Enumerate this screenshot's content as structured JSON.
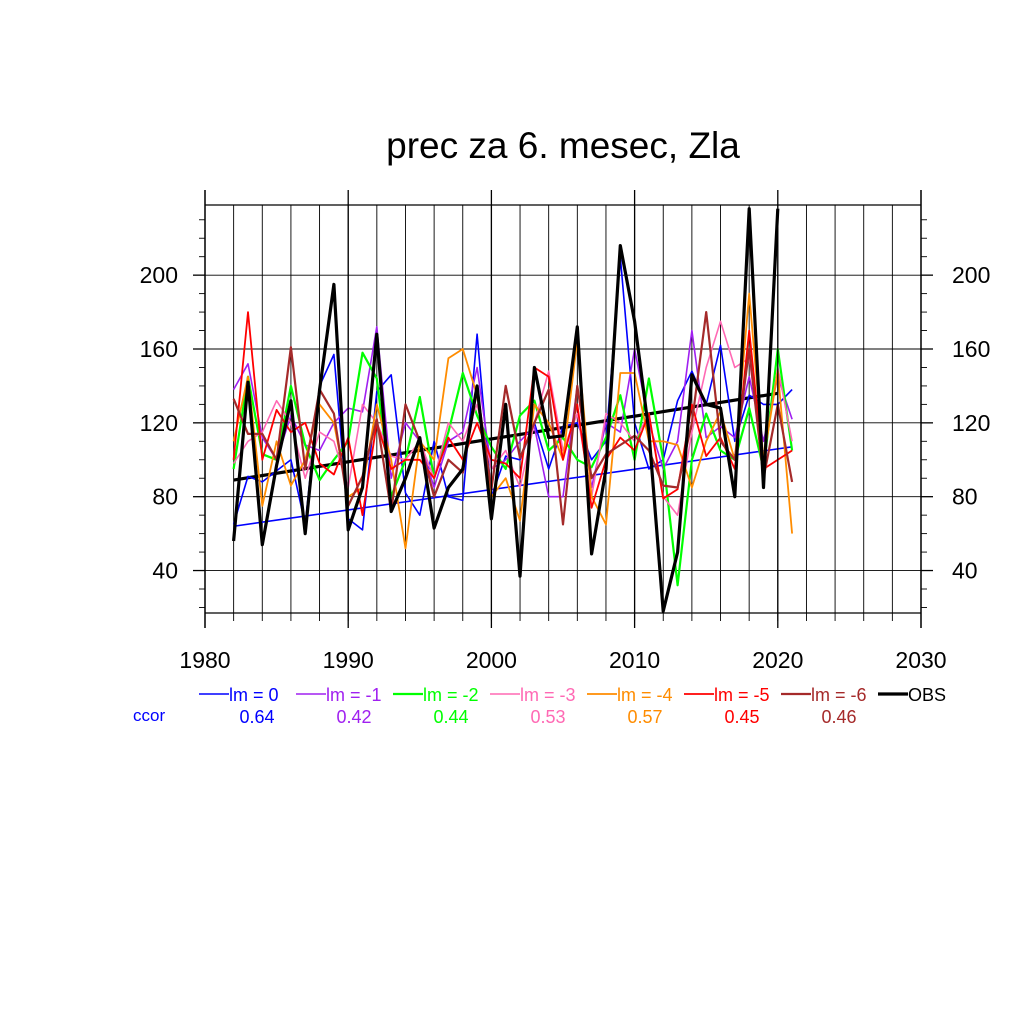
{
  "chart_data": {
    "type": "line",
    "title": "prec za 6. mesec, Zla",
    "xlim": [
      1980,
      2030
    ],
    "ylim": [
      17,
      238
    ],
    "x_ticks": [
      1980,
      1990,
      2000,
      2010,
      2020,
      2030
    ],
    "y_ticks": [
      40,
      80,
      120,
      160,
      200
    ],
    "x_tick_labels": [
      "1980",
      "1990",
      "2000",
      "2010",
      "2020",
      "2030"
    ],
    "y_tick_labels": [
      "40",
      "80",
      "120",
      "160",
      "200"
    ],
    "grid": true,
    "legend_position": "bottom",
    "ccor_label": "ccor",
    "x": [
      1982,
      1983,
      1984,
      1985,
      1986,
      1987,
      1988,
      1989,
      1990,
      1991,
      1992,
      1993,
      1994,
      1995,
      1996,
      1997,
      1998,
      1999,
      2000,
      2001,
      2002,
      2003,
      2004,
      2005,
      2006,
      2007,
      2008,
      2009,
      2010,
      2011,
      2012,
      2013,
      2014,
      2015,
      2016,
      2017,
      2018,
      2019,
      2020,
      2021
    ],
    "series": [
      {
        "name": "lm = 0",
        "color": "#0000ff",
        "width": 1.6,
        "ccor": "0.64",
        "values": [
          65,
          91,
          88,
          94,
          100,
          65,
          140,
          157,
          68,
          62,
          137,
          146,
          82,
          70,
          110,
          80,
          78,
          168,
          80,
          102,
          100,
          120,
          95,
          118,
          120,
          100,
          110,
          210,
          120,
          95,
          100,
          132,
          148,
          130,
          162,
          110,
          135,
          130,
          130,
          138
        ]
      },
      {
        "name": "lm = -1",
        "color": "#a020f0",
        "width": 1.6,
        "ccor": "0.42",
        "values": [
          138,
          152,
          112,
          100,
          124,
          108,
          105,
          120,
          128,
          126,
          172,
          90,
          120,
          110,
          85,
          110,
          115,
          150,
          95,
          100,
          110,
          118,
          80,
          80,
          140,
          85,
          120,
          115,
          160,
          120,
          95,
          110,
          170,
          112,
          118,
          112,
          145,
          110,
          145,
          122
        ]
      },
      {
        "name": "lm = -2",
        "color": "#00ff00",
        "width": 2.2,
        "ccor": "0.44",
        "values": [
          95,
          145,
          103,
          100,
          140,
          108,
          89,
          100,
          110,
          158,
          144,
          80,
          100,
          134,
          90,
          115,
          147,
          124,
          107,
          95,
          124,
          132,
          105,
          112,
          100,
          96,
          112,
          135,
          100,
          144,
          100,
          32,
          100,
          125,
          105,
          100,
          128,
          95,
          160,
          105
        ]
      },
      {
        "name": "lm = -3",
        "color": "#ff69b4",
        "width": 1.6,
        "ccor": "0.53",
        "values": [
          98,
          110,
          115,
          132,
          120,
          90,
          115,
          110,
          85,
          130,
          120,
          102,
          100,
          110,
          90,
          120,
          110,
          130,
          95,
          105,
          85,
          120,
          148,
          105,
          125,
          80,
          125,
          120,
          110,
          125,
          80,
          70,
          115,
          150,
          175,
          150,
          155,
          100,
          150,
          110
        ]
      },
      {
        "name": "lm = -4",
        "color": "#ff8c00",
        "width": 1.8,
        "ccor": "0.57",
        "values": [
          110,
          145,
          75,
          110,
          86,
          100,
          130,
          120,
          80,
          85,
          130,
          100,
          52,
          110,
          100,
          155,
          160,
          135,
          80,
          90,
          67,
          130,
          120,
          100,
          165,
          80,
          65,
          147,
          147,
          110,
          110,
          108,
          85,
          110,
          126,
          100,
          190,
          100,
          148,
          60
        ]
      },
      {
        "name": "lm = -5",
        "color": "#ff0000",
        "width": 1.8,
        "ccor": "0.45",
        "values": [
          100,
          180,
          100,
          127,
          115,
          120,
          98,
          92,
          112,
          70,
          120,
          95,
          100,
          100,
          90,
          112,
          100,
          120,
          100,
          98,
          90,
          150,
          145,
          100,
          130,
          74,
          100,
          112,
          105,
          125,
          79,
          84,
          130,
          102,
          112,
          95,
          170,
          95,
          100,
          105
        ]
      },
      {
        "name": "lm = -6",
        "color": "#a52a2a",
        "width": 2.2,
        "ccor": "0.46",
        "values": [
          133,
          114,
          114,
          100,
          161,
          95,
          138,
          125,
          75,
          91,
          122,
          72,
          130,
          110,
          80,
          100,
          93,
          138,
          84,
          140,
          101,
          120,
          138,
          65,
          140,
          90,
          103,
          108,
          113,
          105,
          86,
          85,
          120,
          180,
          110,
          100,
          160,
          90,
          130,
          88
        ]
      },
      {
        "name": "OBS",
        "color": "#000000",
        "width": 3.2,
        "ccor": "",
        "values": [
          56,
          142,
          54,
          97,
          132,
          60,
          138,
          195,
          62,
          85,
          168,
          72,
          90,
          112,
          63,
          85,
          95,
          140,
          68,
          130,
          37,
          150,
          112,
          113,
          172,
          49,
          95,
          216,
          175,
          115,
          18,
          50,
          146,
          130,
          128,
          80,
          236,
          85,
          236,
          null
        ]
      }
    ],
    "trend_lines": [
      {
        "color": "#000000",
        "width": 3.2,
        "x": [
          1982,
          2020
        ],
        "y": [
          89,
          136
        ]
      },
      {
        "color": "#0000ff",
        "width": 1.6,
        "x": [
          1982,
          2021
        ],
        "y": [
          64,
          107
        ]
      }
    ]
  }
}
